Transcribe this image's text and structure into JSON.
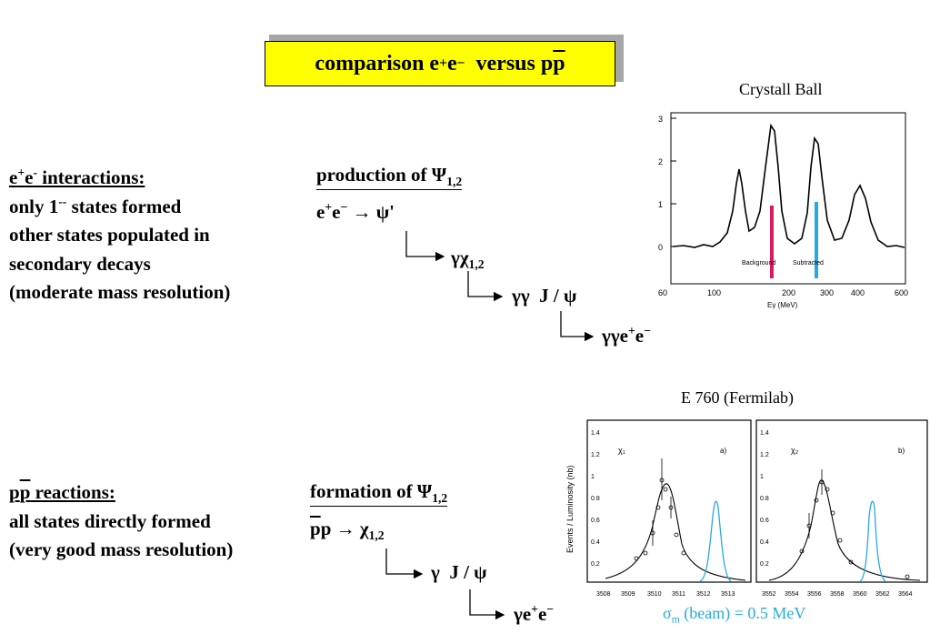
{
  "title": {
    "pre": "comparison e",
    "sup1": "+",
    "mid": "e",
    "sup2": "−",
    "post": "  versus p",
    "pbar": "p"
  },
  "ee": {
    "heading_a": "e",
    "heading_sup1": "+",
    "heading_b": "e",
    "heading_sup2": "-",
    "heading_c": " interactions:",
    "line1_a": "only 1",
    "line1_sup": "--",
    "line1_b": " states formed",
    "line2": "other states populated in",
    "line3": "secondary decays",
    "line4": "(moderate mass resolution)"
  },
  "pp": {
    "heading_p": "p",
    "heading_pbar": "p",
    "heading_rest": " reactions:",
    "line1": "all states directly formed",
    "line2": "(very good mass resolution)"
  },
  "production": {
    "heading": "production of Ψ",
    "heading_sub": "1,2",
    "step1_a": "e",
    "step1_sup1": "+",
    "step1_b": "e",
    "step1_sup2": "−",
    "step1_c": " → ψ'",
    "step2": "γχ",
    "step2_sub": "1,2",
    "step3": "γγ  J / ψ",
    "step4": "γγe",
    "step4_sup1": "+",
    "step4_b": "e",
    "step4_sup2": "−"
  },
  "formation": {
    "heading": "formation of Ψ",
    "heading_sub": "1,2",
    "step1_pbar": "p",
    "step1_p": "p",
    "step1_c": " → χ",
    "step1_sub": "1,2",
    "step2": "γ  J / ψ",
    "step3": "γe",
    "step3_sup1": "+",
    "step3_b": "e",
    "step3_sup2": "−"
  },
  "crystal_ball": {
    "caption": "Crystall Ball",
    "y_ticks": [
      "3",
      "2",
      "1",
      "0"
    ],
    "x_ticks": [
      "60",
      "100",
      "200",
      "300",
      "400",
      "600"
    ],
    "xlabel": "Eγ   (MeV)",
    "annotation_left": "Background",
    "annotation_right": "Subtracted",
    "marker_left_color": "#d81b60",
    "marker_right_color": "#29a8e0"
  },
  "e760": {
    "caption": "E 760 (Fermilab)",
    "ylabel": "Events / Luminosity (nb)",
    "y_ticks": [
      "1.4",
      "1.2",
      "1",
      "0.8",
      "0.6",
      "0.4",
      "0.2"
    ],
    "panel_a": {
      "label": "χ₁",
      "tag": "a)",
      "x_ticks": [
        "3508",
        "3509",
        "3510",
        "3511",
        "3512",
        "3513"
      ]
    },
    "panel_b": {
      "label": "χ₂",
      "tag": "b)",
      "x_ticks": [
        "3552",
        "3554",
        "3556",
        "3558",
        "3560",
        "3562",
        "3564"
      ]
    },
    "beam_curve_color": "#29a8e0"
  },
  "sigma": {
    "symbol": "σ",
    "sub": "m",
    "text": " (beam) = 0.5 MeV",
    "color": "#29a8e0"
  }
}
